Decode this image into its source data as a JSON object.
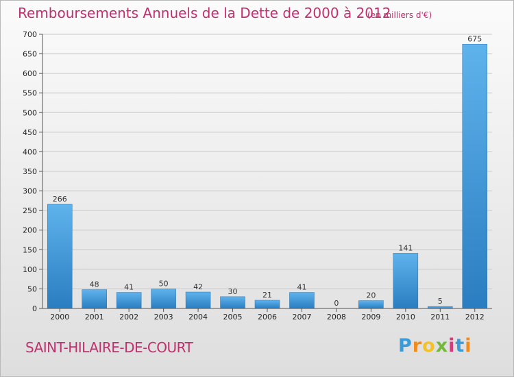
{
  "chart_data": {
    "type": "bar",
    "title": "Remboursements Annuels de la Dette de 2000 à 2012",
    "subtitle": "(en milliers d'€)",
    "categories": [
      "2000",
      "2001",
      "2002",
      "2003",
      "2004",
      "2005",
      "2006",
      "2007",
      "2008",
      "2009",
      "2010",
      "2011",
      "2012"
    ],
    "values": [
      266,
      48,
      41,
      50,
      42,
      30,
      21,
      41,
      0,
      20,
      141,
      5,
      675
    ],
    "ylim": [
      0,
      700
    ],
    "yticks": [
      0,
      50,
      100,
      150,
      200,
      250,
      300,
      350,
      400,
      450,
      500,
      550,
      600,
      650,
      700
    ],
    "grid": true,
    "bar_color": "#3a8fd6"
  },
  "footer": {
    "commune": "SAINT-HILAIRE-DE-COURT",
    "logo": "Proxiti"
  }
}
